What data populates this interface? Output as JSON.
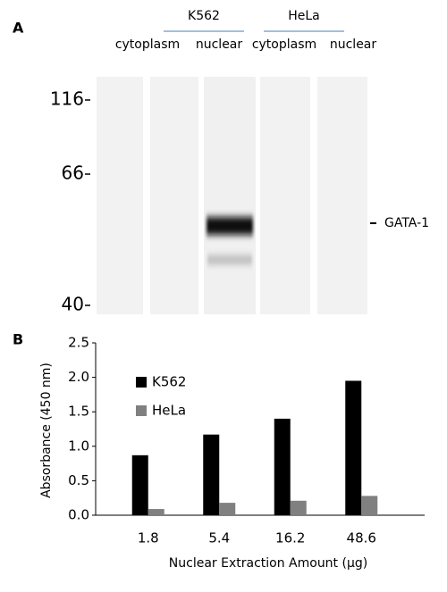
{
  "panel_a": {
    "label": "A",
    "groups": [
      {
        "name": "K562",
        "lanes": [
          "cytoplasm",
          "nuclear"
        ]
      },
      {
        "name": "HeLa",
        "lanes": [
          "cytoplasm",
          "nuclear"
        ]
      }
    ],
    "markers": [
      "116",
      "66",
      "40"
    ],
    "band_label": "GATA-1"
  },
  "chart_data": {
    "type": "bar",
    "panel_label": "B",
    "x_label": "Nuclear Extraction Amount (µg)",
    "y_label": "Absorbance (450 nm)",
    "categories": [
      "1.8",
      "5.4",
      "16.2",
      "48.6"
    ],
    "series": [
      {
        "name": "K562",
        "color": "#000000",
        "values": [
          0.87,
          1.17,
          1.4,
          1.95
        ]
      },
      {
        "name": "HeLa",
        "color": "#808080",
        "values": [
          0.09,
          0.18,
          0.21,
          0.28
        ]
      }
    ],
    "ylim": [
      0,
      2.5
    ],
    "yticks": [
      {
        "value": 0,
        "label": "0.0"
      },
      {
        "value": 0.5,
        "label": "0.5"
      },
      {
        "value": 1,
        "label": "1.0"
      },
      {
        "value": 1.5,
        "label": "1.5"
      },
      {
        "value": 2,
        "label": "2.0"
      },
      {
        "value": 2.5,
        "label": "2.5"
      }
    ],
    "legend": "upper left"
  }
}
